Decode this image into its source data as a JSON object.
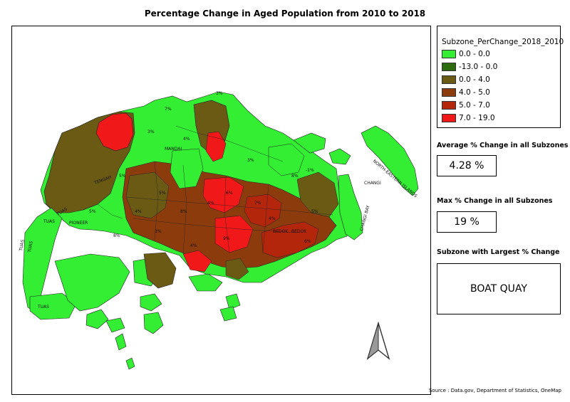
{
  "title": "Percentage Change in Aged Population from 2010 to 2018",
  "legend": {
    "title": "Subzone_PerChange_2018_2010",
    "items": [
      {
        "label": "0.0 - 0.0",
        "color": "#33ee33"
      },
      {
        "label": "-13.0 - 0.0",
        "color": "#2e6b0e"
      },
      {
        "label": "0.0 - 4.0",
        "color": "#6b5a14"
      },
      {
        "label": "4.0 - 5.0",
        "color": "#8c3c0c"
      },
      {
        "label": "5.0 - 7.0",
        "color": "#b4260c"
      },
      {
        "label": "7.0 - 19.0",
        "color": "#f01818"
      }
    ]
  },
  "stats": {
    "avg_label": "Average % Change in all Subzones",
    "avg_value": "4.28 %",
    "max_label": "Max % Change in all Subzones",
    "max_value": "19 %",
    "largest_label": "Subzone with Largest % Change",
    "largest_value": "BOAT QUAY"
  },
  "source": "Source : Data.gov, Department of Statistics, OneMap",
  "map_labels": {
    "tuas_1": "TUAS",
    "tuas_2": "TUAS",
    "tuas_3": "TUAS",
    "tuas_4": "TUAS",
    "tuas_5": "TUAS",
    "pioneer": "PIONEER",
    "tengah": "TENGAH",
    "mandai": "MANDAI",
    "bedok_1": "BEDOK",
    "bedok_2": "BEDOK",
    "changi": "CHANGI",
    "changi_bay": "CHANGI BAY",
    "north_eastern_islands": "NORTH-EASTERN ISLANDS",
    "pct_5": "5%",
    "pct_3": "3%",
    "pct_4": "4%",
    "pct_7": "7%",
    "pct_8": "8%",
    "pct_6": "6%",
    "pct_neg1": "-1%",
    "pct_9": "9%"
  },
  "north_arrow": "north-arrow-icon"
}
